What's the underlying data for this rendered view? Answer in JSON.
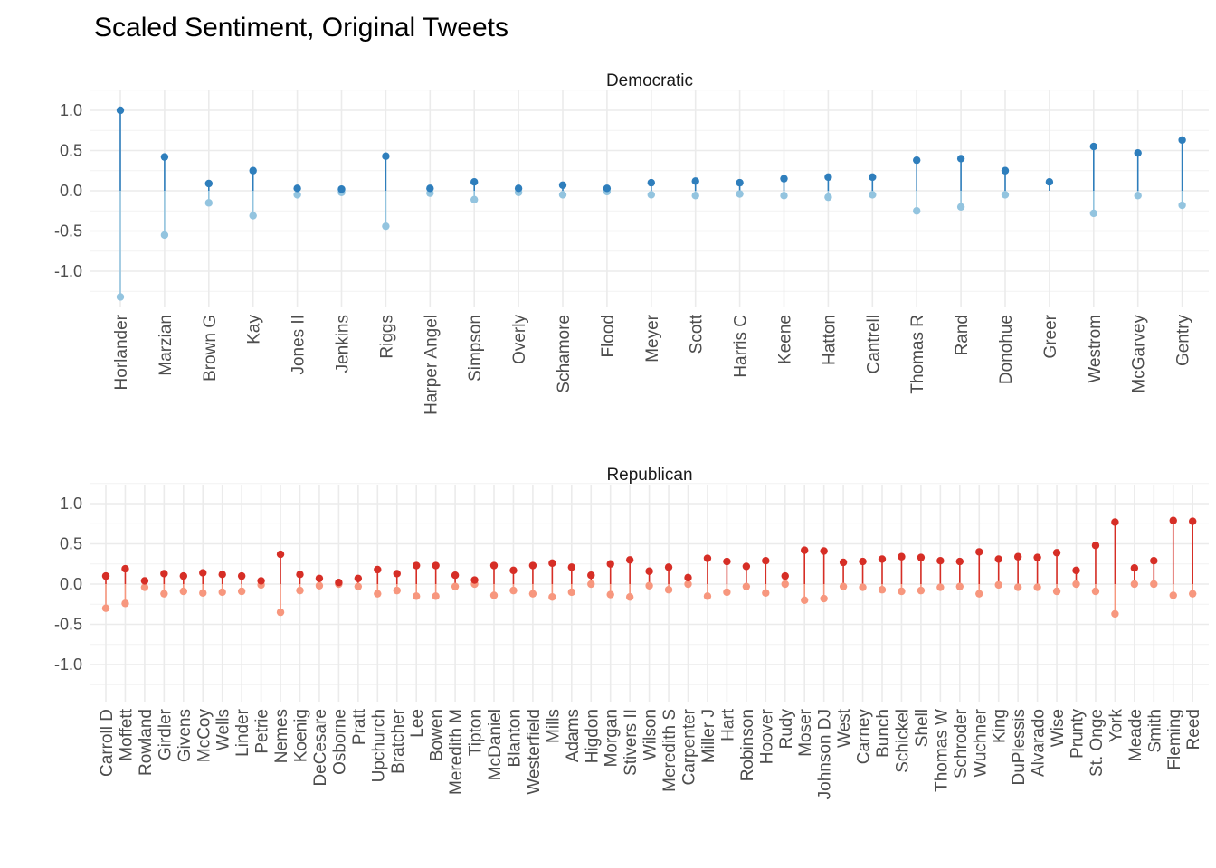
{
  "chart_data": {
    "type": "lollipop",
    "title": "Scaled Sentiment, Original Tweets",
    "y_ticks": [
      1.0,
      0.5,
      0.0,
      -0.5,
      -1.0
    ],
    "y_tick_labels": [
      "1.0",
      "0.5",
      "0.0",
      "-0.5",
      "-1.0"
    ],
    "ylim": [
      -1.45,
      1.1
    ],
    "grid": true,
    "panels": [
      {
        "strip": "Democratic",
        "colors": {
          "positive": "#2e7ebc",
          "negative": "#93c4df"
        },
        "categories": [
          "Horlander",
          "Marzian",
          "Brown G",
          "Kay",
          "Jones II",
          "Jenkins",
          "Riggs",
          "Harper Angel",
          "Simpson",
          "Overly",
          "Schamore",
          "Flood",
          "Meyer",
          "Scott",
          "Harris C",
          "Keene",
          "Hatton",
          "Cantrell",
          "Thomas R",
          "Rand",
          "Donohue",
          "Greer",
          "Westrom",
          "McGarvey",
          "Gentry"
        ],
        "positive": [
          1.0,
          0.42,
          0.09,
          0.25,
          0.03,
          0.02,
          0.43,
          0.03,
          0.11,
          0.03,
          0.07,
          0.03,
          0.1,
          0.12,
          0.1,
          0.15,
          0.17,
          0.17,
          0.38,
          0.4,
          0.25,
          0.11,
          0.55,
          0.47,
          0.63
        ],
        "negative": [
          -1.32,
          -0.55,
          -0.15,
          -0.31,
          -0.05,
          -0.02,
          -0.44,
          -0.03,
          -0.11,
          -0.02,
          -0.05,
          -0.01,
          -0.05,
          -0.06,
          -0.04,
          -0.06,
          -0.08,
          -0.05,
          -0.25,
          -0.2,
          -0.05,
          null,
          -0.28,
          -0.06,
          -0.18
        ]
      },
      {
        "strip": "Republican",
        "colors": {
          "positive": "#d62e26",
          "negative": "#f7977e"
        },
        "categories": [
          "Carroll D",
          "Moffett",
          "Rowland",
          "Girdler",
          "Givens",
          "McCoy",
          "Wells",
          "Linder",
          "Petrie",
          "Nemes",
          "Koenig",
          "DeCesare",
          "Osborne",
          "Pratt",
          "Upchurch",
          "Bratcher",
          "Lee",
          "Bowen",
          "Meredith M",
          "Tipton",
          "McDaniel",
          "Blanton",
          "Westerfield",
          "Mills",
          "Adams",
          "Higdon",
          "Morgan",
          "Stivers II",
          "Wilson",
          "Meredith S",
          "Carpenter",
          "Miller J",
          "Hart",
          "Robinson",
          "Hoover",
          "Rudy",
          "Moser",
          "Johnson DJ",
          "West",
          "Carney",
          "Bunch",
          "Schickel",
          "Shell",
          "Thomas W",
          "Schroder",
          "Wuchner",
          "King",
          "DuPlessis",
          "Alvarado",
          "Wise",
          "Prunty",
          "St. Onge",
          "York",
          "Meade",
          "Smith",
          "Fleming",
          "Reed"
        ],
        "positive": [
          0.1,
          0.19,
          0.04,
          0.13,
          0.1,
          0.14,
          0.12,
          0.1,
          0.04,
          0.37,
          0.12,
          0.07,
          0.02,
          0.07,
          0.18,
          0.13,
          0.23,
          0.23,
          0.11,
          0.05,
          0.23,
          0.17,
          0.23,
          0.26,
          0.21,
          0.11,
          0.25,
          0.3,
          0.16,
          0.21,
          0.08,
          0.32,
          0.28,
          0.22,
          0.29,
          0.1,
          0.42,
          0.41,
          0.27,
          0.28,
          0.31,
          0.34,
          0.33,
          0.29,
          0.28,
          0.4,
          0.31,
          0.34,
          0.33,
          0.39,
          0.17,
          0.48,
          0.77,
          0.2,
          0.29,
          0.79,
          0.78
        ],
        "negative": [
          -0.3,
          -0.24,
          -0.04,
          -0.12,
          -0.09,
          -0.11,
          -0.1,
          -0.09,
          -0.01,
          -0.35,
          -0.08,
          -0.02,
          0.0,
          -0.03,
          -0.12,
          -0.08,
          -0.15,
          -0.15,
          -0.03,
          0.0,
          -0.14,
          -0.08,
          -0.12,
          -0.16,
          -0.1,
          0.0,
          -0.13,
          -0.16,
          -0.02,
          -0.07,
          0.0,
          -0.15,
          -0.1,
          -0.03,
          -0.11,
          0.0,
          -0.2,
          -0.18,
          -0.03,
          -0.04,
          -0.07,
          -0.09,
          -0.08,
          -0.04,
          -0.03,
          -0.12,
          -0.01,
          -0.04,
          -0.04,
          -0.09,
          0.0,
          -0.09,
          -0.37,
          0.0,
          0.0,
          -0.14,
          -0.12
        ]
      }
    ]
  }
}
